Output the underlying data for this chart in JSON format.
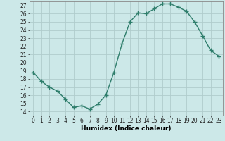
{
  "x": [
    0,
    1,
    2,
    3,
    4,
    5,
    6,
    7,
    8,
    9,
    10,
    11,
    12,
    13,
    14,
    15,
    16,
    17,
    18,
    19,
    20,
    21,
    22,
    23
  ],
  "y": [
    18.8,
    17.7,
    17.0,
    16.5,
    15.5,
    14.5,
    14.7,
    14.3,
    14.9,
    16.0,
    18.8,
    22.3,
    25.0,
    26.1,
    26.0,
    26.6,
    27.2,
    27.2,
    26.8,
    26.3,
    25.0,
    23.3,
    21.5,
    20.8
  ],
  "line_color": "#2e7d6b",
  "marker": "+",
  "marker_color": "#2e7d6b",
  "bg_color": "#cce8e8",
  "grid_color": "#b0cccc",
  "xlabel": "Humidex (Indice chaleur)",
  "ylabel_ticks": [
    14,
    15,
    16,
    17,
    18,
    19,
    20,
    21,
    22,
    23,
    24,
    25,
    26,
    27
  ],
  "xlim": [
    -0.5,
    23.5
  ],
  "ylim": [
    13.5,
    27.5
  ],
  "tick_fontsize": 5.5,
  "xlabel_fontsize": 6.5
}
